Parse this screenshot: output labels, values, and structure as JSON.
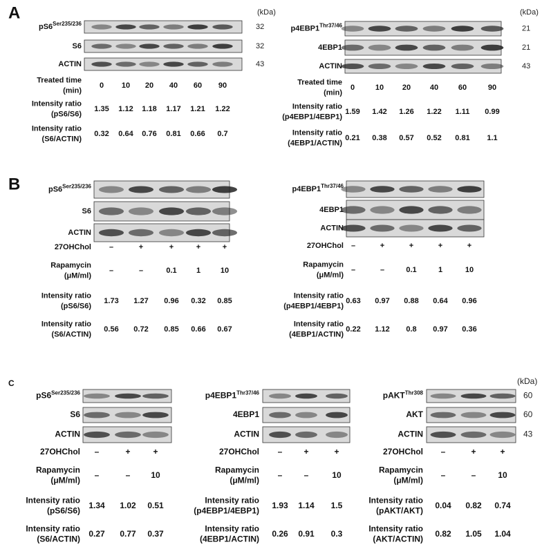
{
  "panels": [
    {
      "label": "A",
      "blots": [
        {
          "kda_header": "(kDa)",
          "rows": [
            {
              "name": "pS6",
              "sup": "Ser235/236",
              "kda": 32
            },
            {
              "name": "S6",
              "kda": 32
            },
            {
              "name": "ACTIN",
              "kda": 43
            }
          ],
          "conditions": [
            {
              "label": [
                "Treated time",
                "(min)"
              ],
              "values": [
                0,
                10,
                20,
                40,
                60,
                90
              ]
            }
          ],
          "ratios": [
            {
              "label": [
                "Intensity ratio",
                "(pS6/S6)"
              ],
              "values": [
                1.35,
                1.12,
                1.18,
                1.17,
                1.21,
                1.22
              ]
            },
            {
              "label": [
                "Intensity ratio",
                "(S6/ACTIN)"
              ],
              "values": [
                0.32,
                0.64,
                0.76,
                0.81,
                0.66,
                0.7
              ]
            }
          ]
        },
        {
          "kda_header": "(kDa)",
          "rows": [
            {
              "name": "p4EBP1",
              "sup": "Thr37/46",
              "kda": 21
            },
            {
              "name": "4EBP1",
              "kda": 21
            },
            {
              "name": "ACTIN",
              "kda": 43
            }
          ],
          "conditions": [
            {
              "label": [
                "Treated time",
                "(min)"
              ],
              "values": [
                0,
                10,
                20,
                40,
                60,
                90
              ]
            }
          ],
          "ratios": [
            {
              "label": [
                "Intensity ratio",
                "(p4EBP1/4EBP1)"
              ],
              "values": [
                1.59,
                1.42,
                1.26,
                1.22,
                1.11,
                0.99
              ]
            },
            {
              "label": [
                "Intensity ratio",
                "(4EBP1/ACTIN)"
              ],
              "values": [
                0.21,
                0.38,
                0.57,
                0.52,
                0.81,
                1.1
              ]
            }
          ]
        }
      ]
    },
    {
      "label": "B",
      "blots": [
        {
          "rows": [
            {
              "name": "pS6",
              "sup": "Ser235/236"
            },
            {
              "name": "S6"
            },
            {
              "name": "ACTIN"
            }
          ],
          "conditions": [
            {
              "label": [
                "27OHChol"
              ],
              "values": [
                "–",
                "+",
                "+",
                "+",
                "+"
              ]
            },
            {
              "label": [
                "Rapamycin",
                "(μM/ml)"
              ],
              "values": [
                "–",
                "–",
                0.1,
                1,
                10
              ]
            }
          ],
          "ratios": [
            {
              "label": [
                "Intensity ratio",
                "(pS6/S6)"
              ],
              "values": [
                1.73,
                1.27,
                0.96,
                0.32,
                0.85
              ]
            },
            {
              "label": [
                "Intensity ratio",
                "(S6/ACTIN)"
              ],
              "values": [
                0.56,
                0.72,
                0.85,
                0.66,
                0.67
              ]
            }
          ]
        },
        {
          "rows": [
            {
              "name": "p4EBP1",
              "sup": "Thr37/46"
            },
            {
              "name": "4EBP1"
            },
            {
              "name": "ACTIN"
            }
          ],
          "conditions": [
            {
              "label": [
                "27OHChol"
              ],
              "values": [
                "–",
                "+",
                "+",
                "+",
                "+"
              ]
            },
            {
              "label": [
                "Rapamycin",
                "(μM/ml)"
              ],
              "values": [
                "–",
                "–",
                0.1,
                1,
                10
              ]
            }
          ],
          "ratios": [
            {
              "label": [
                "Intensity ratio",
                "(p4EBP1/4EBP1)"
              ],
              "values": [
                0.63,
                0.97,
                0.88,
                0.64,
                0.96
              ]
            },
            {
              "label": [
                "Intensity ratio",
                "(4EBP1/ACTIN)"
              ],
              "values": [
                0.22,
                1.12,
                0.8,
                0.97,
                0.36
              ]
            }
          ]
        }
      ]
    },
    {
      "label": "C",
      "blots": [
        {
          "rows": [
            {
              "name": "pS6",
              "sup": "Ser235/236"
            },
            {
              "name": "S6"
            },
            {
              "name": "ACTIN"
            }
          ],
          "conditions": [
            {
              "label": [
                "27OHChol"
              ],
              "values": [
                "–",
                "+",
                "+"
              ]
            },
            {
              "label": [
                "Rapamycin",
                "(μM/ml)"
              ],
              "values": [
                "–",
                "–",
                10
              ]
            }
          ],
          "ratios": [
            {
              "label": [
                "Intensity ratio",
                "(pS6/S6)"
              ],
              "values": [
                1.34,
                1.02,
                0.51
              ]
            },
            {
              "label": [
                "Intensity ratio",
                "(S6/ACTIN)"
              ],
              "values": [
                0.27,
                0.77,
                0.37
              ]
            }
          ]
        },
        {
          "rows": [
            {
              "name": "p4EBP1",
              "sup": "Thr37/46"
            },
            {
              "name": "4EBP1"
            },
            {
              "name": "ACTIN"
            }
          ],
          "conditions": [
            {
              "label": [
                "27OHChol"
              ],
              "values": [
                "–",
                "+",
                "+"
              ]
            },
            {
              "label": [
                "Rapamycin",
                "(μM/ml)"
              ],
              "values": [
                "–",
                "–",
                10
              ]
            }
          ],
          "ratios": [
            {
              "label": [
                "Intensity ratio",
                "(p4EBP1/4EBP1)"
              ],
              "values": [
                1.93,
                1.14,
                1.5
              ]
            },
            {
              "label": [
                "Intensity ratio",
                "(4EBP1/ACTIN)"
              ],
              "values": [
                0.26,
                0.91,
                0.3
              ]
            }
          ]
        },
        {
          "kda_header": "(kDa)",
          "rows": [
            {
              "name": "pAKT",
              "sup": "Thr308",
              "kda": 60
            },
            {
              "name": "AKT",
              "kda": 60
            },
            {
              "name": "ACTIN",
              "kda": 43
            }
          ],
          "conditions": [
            {
              "label": [
                "27OHChol"
              ],
              "values": [
                "–",
                "+",
                "+"
              ]
            },
            {
              "label": [
                "Rapamycin",
                "(μM/ml)"
              ],
              "values": [
                "–",
                "–",
                10
              ]
            }
          ],
          "ratios": [
            {
              "label": [
                "Intensity ratio",
                "(pAKT/AKT)"
              ],
              "values": [
                0.04,
                0.82,
                0.74
              ]
            },
            {
              "label": [
                "Intensity ratio",
                "(AKT/ACTIN)"
              ],
              "values": [
                0.82,
                1.05,
                1.04
              ]
            }
          ]
        }
      ]
    }
  ]
}
